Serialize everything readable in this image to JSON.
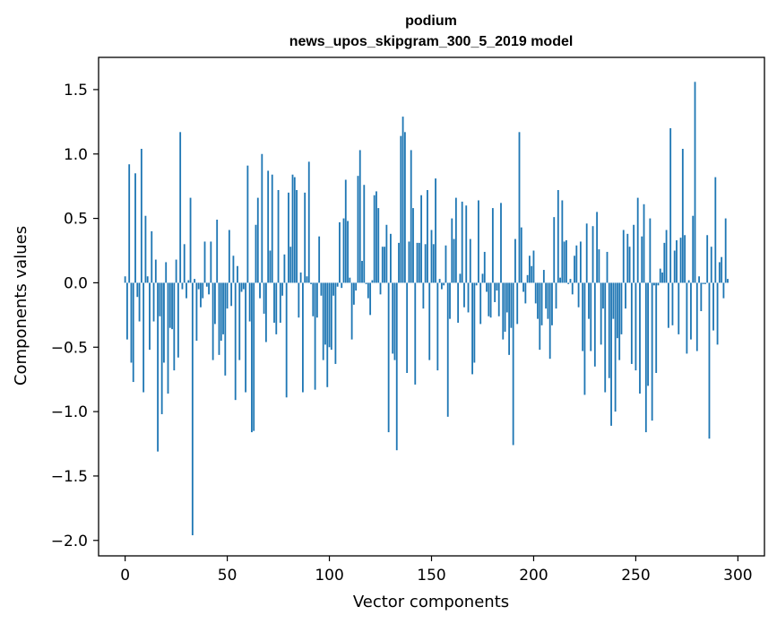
{
  "chart_data": {
    "type": "bar",
    "title": "podium",
    "subtitle": "news_upos_skipgram_300_5_2019 model",
    "xlabel": "Vector components",
    "ylabel": "Components values",
    "xlim": [
      -13,
      313
    ],
    "ylim": [
      -2.12,
      1.75
    ],
    "xticks": [
      0,
      50,
      100,
      150,
      200,
      250,
      300
    ],
    "xtick_labels": [
      "0",
      "50",
      "100",
      "150",
      "200",
      "250",
      "300"
    ],
    "yticks": [
      -2.0,
      -1.5,
      -1.0,
      -0.5,
      0.0,
      0.5,
      1.0,
      1.5
    ],
    "ytick_labels": [
      "−2.0",
      "−1.5",
      "−1.0",
      "−0.5",
      "0.0",
      "0.5",
      "1.0",
      "1.5"
    ],
    "grid": false,
    "legend": "none",
    "bar_color": "#1f77b4",
    "values": [
      0.05,
      -0.44,
      0.92,
      -0.62,
      -0.77,
      0.85,
      -0.11,
      -0.3,
      1.04,
      -0.85,
      0.52,
      0.05,
      -0.52,
      0.4,
      -0.3,
      0.18,
      -1.31,
      -0.26,
      -1.02,
      -0.62,
      0.16,
      -0.86,
      -0.35,
      -0.36,
      -0.68,
      0.18,
      -0.58,
      1.17,
      -0.05,
      0.3,
      -0.12,
      0.02,
      0.66,
      -1.96,
      0.03,
      -0.45,
      -0.05,
      -0.19,
      -0.12,
      0.32,
      -0.03,
      -0.09,
      0.32,
      -0.6,
      -0.32,
      0.49,
      -0.56,
      -0.45,
      -0.4,
      -0.72,
      -0.2,
      0.41,
      -0.18,
      0.21,
      -0.91,
      0.13,
      -0.6,
      -0.07,
      -0.05,
      -0.85,
      0.91,
      -0.3,
      -1.16,
      -1.15,
      0.45,
      0.66,
      -0.12,
      1.0,
      -0.24,
      -0.46,
      0.87,
      0.25,
      0.84,
      -0.31,
      -0.4,
      0.72,
      -0.31,
      -0.1,
      0.22,
      -0.89,
      0.7,
      0.28,
      0.84,
      0.82,
      0.72,
      -0.27,
      0.08,
      -0.85,
      0.7,
      0.05,
      0.94,
      -0.01,
      -0.26,
      -0.83,
      -0.27,
      0.36,
      -0.1,
      -0.6,
      -0.48,
      -0.81,
      -0.5,
      -0.52,
      -0.1,
      -0.63,
      -0.03,
      0.47,
      -0.04,
      0.5,
      0.8,
      0.48,
      0.04,
      -0.44,
      -0.17,
      -0.06,
      0.83,
      1.03,
      0.17,
      0.76,
      -0.01,
      -0.12,
      -0.25,
      0.02,
      0.68,
      0.71,
      0.58,
      -0.09,
      0.28,
      0.28,
      0.45,
      -1.16,
      0.38,
      -0.55,
      -0.6,
      -1.3,
      0.31,
      1.14,
      1.29,
      1.17,
      -0.7,
      0.32,
      1.03,
      0.58,
      -0.79,
      0.31,
      0.31,
      0.68,
      -0.2,
      0.3,
      0.72,
      -0.6,
      0.41,
      0.3,
      0.81,
      -0.68,
      0.03,
      -0.05,
      -0.02,
      0.29,
      -1.04,
      -0.28,
      0.5,
      0.34,
      0.66,
      -0.31,
      0.07,
      0.63,
      -0.19,
      0.6,
      -0.23,
      0.34,
      -0.71,
      -0.62,
      -0.02,
      0.64,
      -0.32,
      0.07,
      0.24,
      -0.07,
      -0.26,
      -0.27,
      0.58,
      -0.15,
      -0.06,
      -0.26,
      0.62,
      -0.44,
      -0.38,
      -0.23,
      -0.56,
      -0.35,
      -1.26,
      0.34,
      -0.32,
      1.17,
      0.43,
      -0.07,
      -0.16,
      0.06,
      0.21,
      0.13,
      0.25,
      -0.16,
      -0.28,
      -0.52,
      -0.33,
      0.1,
      -0.2,
      -0.28,
      -0.59,
      -0.33,
      0.51,
      -0.2,
      0.72,
      0.04,
      0.64,
      0.32,
      0.33,
      -0.01,
      0.03,
      -0.09,
      0.21,
      0.29,
      -0.19,
      0.32,
      -0.53,
      -0.87,
      0.46,
      -0.28,
      -0.53,
      0.44,
      -0.65,
      0.55,
      0.26,
      -0.48,
      -0.2,
      -0.85,
      0.24,
      -0.74,
      -1.11,
      -0.28,
      -1.0,
      -0.43,
      -0.6,
      -0.4,
      0.41,
      -0.2,
      0.38,
      0.28,
      -0.63,
      0.45,
      -0.68,
      0.66,
      -0.86,
      0.36,
      0.61,
      -1.16,
      -0.8,
      0.5,
      -1.07,
      -0.02,
      -0.7,
      -0.02,
      0.11,
      0.08,
      0.31,
      0.41,
      -0.35,
      1.2,
      -0.33,
      0.25,
      0.33,
      -0.4,
      0.35,
      1.04,
      0.37,
      -0.55,
      0.02,
      -0.44,
      0.52,
      1.56,
      -0.53,
      0.05,
      -0.22,
      -0.01,
      -0.01,
      0.37,
      -1.21,
      0.28,
      -0.37,
      0.82,
      -0.48,
      0.16,
      0.2,
      -0.12,
      0.5,
      0.03
    ]
  }
}
